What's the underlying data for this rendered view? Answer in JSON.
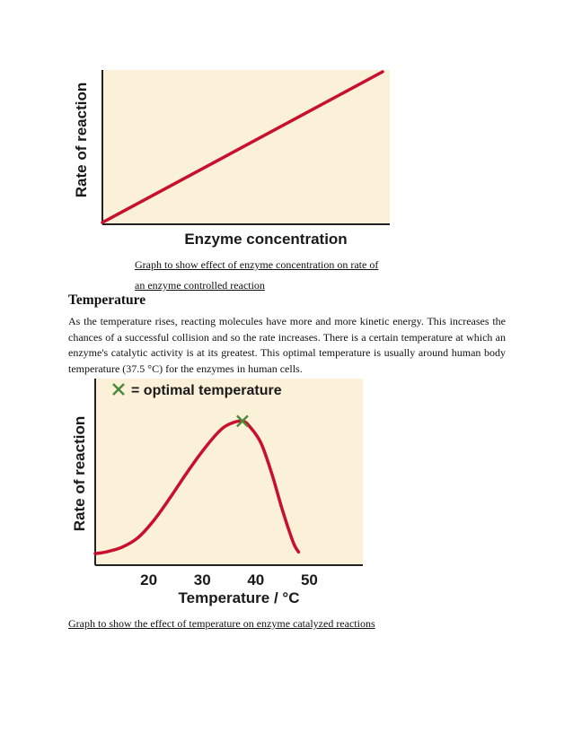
{
  "figure1": {
    "caption_line1": "Graph to show effect of enzyme concentration on rate of",
    "caption_line2": "an enzyme controlled reaction",
    "chart_data": {
      "type": "line",
      "xlabel": "Enzyme concentration",
      "ylabel": "Rate of reaction",
      "series": [
        {
          "x": [
            0,
            1
          ],
          "y": [
            0,
            1
          ]
        }
      ],
      "colors": {
        "line": "#c8102e",
        "plot_bg": "#fbf0d8",
        "axis": "#222222"
      }
    }
  },
  "section": {
    "heading": "Temperature",
    "paragraph": "As the temperature rises, reacting molecules have more and more kinetic energy. This increases the chances of a successful collision and so the rate increases. There is a certain temperature at which an enzyme's catalytic activity is at its greatest. This optimal temperature is usually around human body temperature (37.5 °C) for the enzymes in human cells."
  },
  "figure2": {
    "caption": "Graph to show the effect of temperature on enzyme catalyzed reactions",
    "chart_data": {
      "type": "line",
      "legend": "= optimal temperature",
      "xlabel": "Temperature / °C",
      "ylabel": "Rate of reaction",
      "xticks": [
        "20",
        "30",
        "40",
        "50"
      ],
      "xlim": [
        10,
        60
      ],
      "ylim": [
        0,
        1
      ],
      "series": [
        {
          "x": [
            10,
            12,
            15,
            18,
            21,
            24,
            27,
            30,
            33,
            35,
            37.5,
            39,
            41,
            43,
            45,
            47,
            48
          ],
          "y": [
            0.05,
            0.06,
            0.09,
            0.15,
            0.26,
            0.4,
            0.55,
            0.69,
            0.81,
            0.86,
            0.88,
            0.84,
            0.74,
            0.55,
            0.32,
            0.12,
            0.06
          ]
        }
      ],
      "optimum": {
        "x": 37.5,
        "y": 0.88
      },
      "colors": {
        "line": "#c8102e",
        "marker": "#4a8a3a",
        "plot_bg": "#fbf0d8",
        "axis": "#222222"
      }
    }
  }
}
